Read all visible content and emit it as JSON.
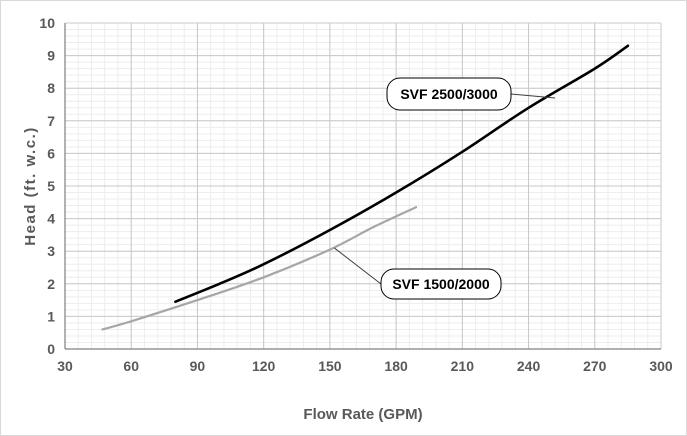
{
  "chart_data": {
    "type": "line",
    "title": "",
    "xlabel": "Flow Rate (GPM)",
    "ylabel": "Head (ft. w.c.)",
    "xlim": [
      30,
      300
    ],
    "ylim": [
      0,
      10
    ],
    "x_ticks": [
      30,
      60,
      90,
      120,
      150,
      180,
      210,
      240,
      270,
      300
    ],
    "y_ticks": [
      0,
      1,
      2,
      3,
      4,
      5,
      6,
      7,
      8,
      9,
      10
    ],
    "grid": true,
    "legend": "none",
    "series": [
      {
        "name": "SVF 2500/3000",
        "color": "#000000",
        "x": [
          80,
          100,
          120,
          150,
          180,
          210,
          240,
          270,
          285
        ],
        "y": [
          1.45,
          2.0,
          2.6,
          3.65,
          4.8,
          6.05,
          7.4,
          8.6,
          9.3
        ]
      },
      {
        "name": "SVF 1500/2000",
        "color": "#a6a6a6",
        "x": [
          47,
          60,
          90,
          120,
          150,
          170,
          189
        ],
        "y": [
          0.6,
          0.85,
          1.5,
          2.2,
          3.05,
          3.75,
          4.35
        ]
      }
    ],
    "annotations": [
      {
        "text": "SVF 2500/3000",
        "series": 0,
        "point": [
          252,
          7.7
        ]
      },
      {
        "text": "SVF 1500/2000",
        "series": 1,
        "point": [
          152,
          3.1
        ]
      }
    ]
  }
}
